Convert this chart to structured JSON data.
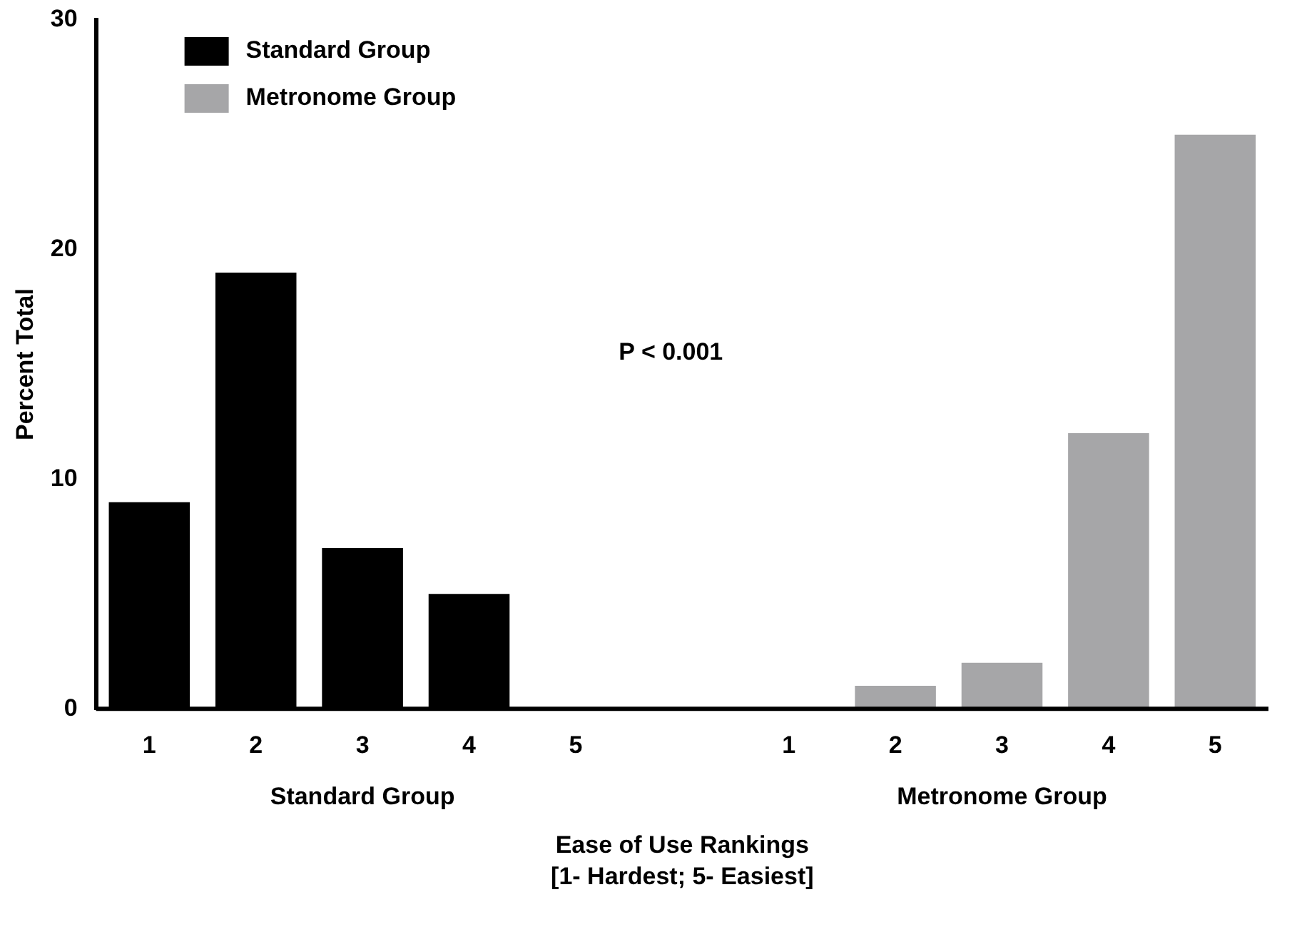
{
  "chart_data": {
    "type": "bar",
    "categories": [
      "1",
      "2",
      "3",
      "4",
      "5",
      null,
      "1",
      "2",
      "3",
      "4",
      "5"
    ],
    "series": [
      {
        "name": "Standard Group",
        "color": "#000000",
        "values": [
          9,
          19,
          7,
          5,
          0,
          null,
          null,
          null,
          null,
          null,
          null
        ]
      },
      {
        "name": "Metronome Group",
        "color": "#a6a6a8",
        "values": [
          null,
          null,
          null,
          null,
          null,
          null,
          0,
          1,
          2,
          12,
          25
        ]
      }
    ],
    "ylabel": "Percent Total",
    "xlabel": "Ease of Use Rankings\n[1- Hardest; 5- Easiest]",
    "annotations": [
      "P < 0.001",
      "Standard Group",
      "Metronome Group"
    ],
    "ylim": [
      0,
      30
    ],
    "yticks": [
      0,
      10,
      20,
      30
    ],
    "grid": false,
    "legend": "top left"
  }
}
